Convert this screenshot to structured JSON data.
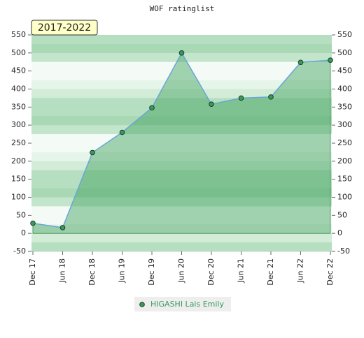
{
  "chart_data": {
    "type": "area",
    "title": "WOF ratinglist",
    "badge": "2017-2022",
    "categories": [
      "Dec 17",
      "Jun 18",
      "Dec 18",
      "Jun 19",
      "Dec 19",
      "Jun 20",
      "Dec 20",
      "Jun 21",
      "Dec 21",
      "Jun 22",
      "Dec 22"
    ],
    "series": [
      {
        "name": "HIGASHI Lais Emily",
        "color": "#3a9a5a",
        "values": [
          28,
          16,
          224,
          280,
          348,
          500,
          358,
          375,
          378,
          474,
          480
        ]
      }
    ],
    "ylim": [
      -50,
      550
    ],
    "yticks": [
      -50,
      0,
      50,
      100,
      150,
      200,
      250,
      300,
      350,
      400,
      450,
      500,
      550
    ],
    "y2lim": [
      -50,
      550
    ],
    "y2ticks": [
      -50,
      0,
      50,
      100,
      150,
      200,
      250,
      300,
      350,
      400,
      450,
      500,
      550
    ]
  }
}
